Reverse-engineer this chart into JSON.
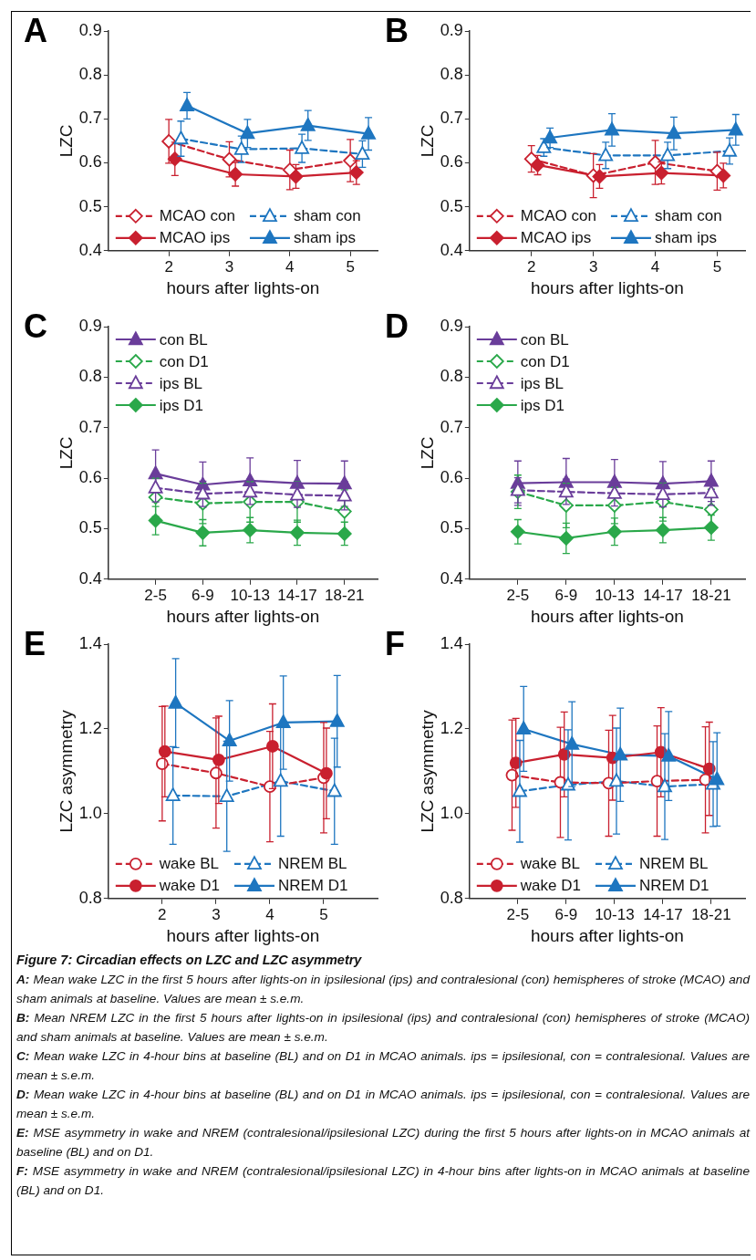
{
  "chart_data": [
    {
      "type": "line",
      "title": "A",
      "xlabel": "hours after lights-on",
      "ylabel": "LZC",
      "xlim": [
        1,
        5.45
      ],
      "xticks": [
        2,
        3,
        4,
        5
      ],
      "ylim": [
        0.4,
        0.9
      ],
      "yticks": [
        0.4,
        0.5,
        0.6,
        0.7,
        0.8,
        0.9
      ],
      "legend": "bottom left",
      "series": [
        {
          "name": "MCAO con",
          "color": "#c9202f",
          "line_style": "dashed",
          "marker": "diamond",
          "x": [
            2,
            3,
            4,
            5
          ],
          "values": [
            0.649,
            0.608,
            0.584,
            0.605
          ],
          "errors": [
            0.05,
            0.04,
            0.045,
            0.048
          ]
        },
        {
          "name": "MCAO ips",
          "color": "#c9202f",
          "line_style": "solid",
          "marker": "diamond",
          "x": [
            2.1,
            3.1,
            4.1,
            5.1
          ],
          "values": [
            0.609,
            0.574,
            0.569,
            0.578
          ],
          "errors": [
            0.038,
            0.027,
            0.027,
            0.027
          ]
        },
        {
          "name": "sham con",
          "color": "#1e76c0",
          "line_style": "dashed",
          "marker": "triangle",
          "x": [
            2.2,
            3.2,
            4.2,
            5.2
          ],
          "values": [
            0.655,
            0.631,
            0.633,
            0.62
          ],
          "errors": [
            0.04,
            0.03,
            0.032,
            0.03
          ]
        },
        {
          "name": "sham ips",
          "color": "#1e76c0",
          "line_style": "solid",
          "marker": "triangle",
          "x": [
            2.3,
            3.3,
            4.3,
            5.3
          ],
          "values": [
            0.73,
            0.667,
            0.685,
            0.666
          ],
          "errors": [
            0.03,
            0.032,
            0.034,
            0.037
          ]
        }
      ]
    },
    {
      "type": "line",
      "title": "B",
      "xlabel": "hours after lights-on",
      "ylabel": "LZC",
      "xlim": [
        1,
        5.45
      ],
      "xticks": [
        2,
        3,
        4,
        5
      ],
      "ylim": [
        0.4,
        0.9
      ],
      "yticks": [
        0.4,
        0.5,
        0.6,
        0.7,
        0.8,
        0.9
      ],
      "legend": "bottom left",
      "series": [
        {
          "name": "MCAO con",
          "color": "#c9202f",
          "line_style": "dashed",
          "marker": "diamond",
          "x": [
            2,
            3,
            4,
            5
          ],
          "values": [
            0.609,
            0.571,
            0.601,
            0.581
          ],
          "errors": [
            0.03,
            0.05,
            0.05,
            0.043
          ]
        },
        {
          "name": "MCAO ips",
          "color": "#c9202f",
          "line_style": "solid",
          "marker": "diamond",
          "x": [
            2.1,
            3.1,
            4.1,
            5.1
          ],
          "values": [
            0.595,
            0.569,
            0.577,
            0.571
          ],
          "errors": [
            0.022,
            0.027,
            0.025,
            0.028
          ]
        },
        {
          "name": "sham con",
          "color": "#1e76c0",
          "line_style": "dashed",
          "marker": "triangle",
          "x": [
            2.2,
            3.2,
            4.2,
            5.2
          ],
          "values": [
            0.635,
            0.617,
            0.617,
            0.627
          ],
          "errors": [
            0.02,
            0.03,
            0.03,
            0.03
          ]
        },
        {
          "name": "sham ips",
          "color": "#1e76c0",
          "line_style": "solid",
          "marker": "triangle",
          "x": [
            2.3,
            3.3,
            4.3,
            5.3
          ],
          "values": [
            0.657,
            0.675,
            0.667,
            0.675
          ],
          "errors": [
            0.022,
            0.037,
            0.037,
            0.035
          ]
        }
      ]
    },
    {
      "type": "line",
      "title": "C",
      "xlabel": "hours after lights-on",
      "ylabel": "LZC",
      "categories": [
        "2-5",
        "6-9",
        "10-13",
        "14-17",
        "18-21"
      ],
      "ylim": [
        0.4,
        0.9
      ],
      "yticks": [
        0.4,
        0.5,
        0.6,
        0.7,
        0.8,
        0.9
      ],
      "legend": "top left",
      "series": [
        {
          "name": "con BL",
          "color": "#6a3d9a",
          "line_style": "solid",
          "marker": "triangle",
          "values": [
            0.609,
            0.587,
            0.595,
            0.59,
            0.589
          ],
          "errors": [
            0.047,
            0.045,
            0.045,
            0.045,
            0.045
          ]
        },
        {
          "name": "con D1",
          "color": "#2aa84a",
          "line_style": "dashed",
          "marker": "diamond",
          "values": [
            0.562,
            0.55,
            0.553,
            0.553,
            0.534
          ],
          "errors": [
            0.038,
            0.04,
            0.04,
            0.04,
            0.043
          ]
        },
        {
          "name": "ips BL",
          "color": "#6a3d9a",
          "line_style": "dashed",
          "marker": "triangle",
          "values": [
            0.581,
            0.569,
            0.573,
            0.567,
            0.565
          ],
          "errors": [
            0.028,
            0.025,
            0.025,
            0.025,
            0.028
          ]
        },
        {
          "name": "ips D1",
          "color": "#2aa84a",
          "line_style": "solid",
          "marker": "diamond",
          "values": [
            0.516,
            0.492,
            0.497,
            0.492,
            0.49
          ],
          "errors": [
            0.028,
            0.026,
            0.025,
            0.025,
            0.023
          ]
        }
      ]
    },
    {
      "type": "line",
      "title": "D",
      "xlabel": "hours after lights-on",
      "ylabel": "LZC",
      "categories": [
        "2-5",
        "6-9",
        "10-13",
        "14-17",
        "18-21"
      ],
      "ylim": [
        0.4,
        0.9
      ],
      "yticks": [
        0.4,
        0.5,
        0.6,
        0.7,
        0.8,
        0.9
      ],
      "legend": "top left",
      "series": [
        {
          "name": "con BL",
          "color": "#6a3d9a",
          "line_style": "solid",
          "marker": "triangle",
          "values": [
            0.59,
            0.592,
            0.592,
            0.589,
            0.594
          ],
          "errors": [
            0.044,
            0.047,
            0.045,
            0.044,
            0.04
          ]
        },
        {
          "name": "con D1",
          "color": "#2aa84a",
          "line_style": "dashed",
          "marker": "diamond",
          "values": [
            0.573,
            0.546,
            0.546,
            0.553,
            0.538
          ],
          "errors": [
            0.033,
            0.044,
            0.036,
            0.038,
            0.04
          ]
        },
        {
          "name": "ips BL",
          "color": "#6a3d9a",
          "line_style": "dashed",
          "marker": "triangle",
          "values": [
            0.576,
            0.573,
            0.57,
            0.568,
            0.571
          ],
          "errors": [
            0.025,
            0.025,
            0.025,
            0.025,
            0.025
          ]
        },
        {
          "name": "ips D1",
          "color": "#2aa84a",
          "line_style": "solid",
          "marker": "diamond",
          "values": [
            0.494,
            0.481,
            0.494,
            0.497,
            0.502
          ],
          "errors": [
            0.024,
            0.03,
            0.027,
            0.025,
            0.025
          ]
        }
      ]
    },
    {
      "type": "line",
      "title": "E",
      "xlabel": "hours after lights-on",
      "ylabel": "LZC asymmetry",
      "xlim": [
        1,
        6
      ],
      "xticks": [
        2,
        3,
        4,
        5
      ],
      "ylim": [
        0.8,
        1.4
      ],
      "yticks": [
        0.8,
        {
          "value": 1,
          "label": "1.0"
        },
        1.2,
        1.4
      ],
      "legend": "bottom left",
      "series": [
        {
          "name": "wake BL",
          "color": "#c9202f",
          "line_style": "dashed",
          "marker": "circle",
          "x": [
            2,
            3,
            4,
            5
          ],
          "values": [
            1.118,
            1.096,
            1.064,
            1.085
          ],
          "errors": [
            0.135,
            0.13,
            0.13,
            0.13
          ]
        },
        {
          "name": "wake D1",
          "color": "#c9202f",
          "line_style": "solid",
          "marker": "circle",
          "x": [
            2.05,
            3.05,
            4.05,
            5.05
          ],
          "values": [
            1.147,
            1.127,
            1.159,
            1.095
          ],
          "errors": [
            0.107,
            0.103,
            0.1,
            0.107
          ]
        },
        {
          "name": "NREM BL",
          "color": "#1e76c0",
          "line_style": "dashed",
          "marker": "triangle",
          "x": [
            2.2,
            3.2,
            4.2,
            5.2
          ],
          "values": [
            1.043,
            1.041,
            1.077,
            1.053
          ],
          "errors": [
            0.115,
            0.13,
            0.13,
            0.125
          ]
        },
        {
          "name": "NREM D1",
          "color": "#1e76c0",
          "line_style": "solid",
          "marker": "triangle",
          "x": [
            2.25,
            3.25,
            4.25,
            5.25
          ],
          "values": [
            1.261,
            1.172,
            1.215,
            1.218
          ],
          "errors": [
            0.105,
            0.095,
            0.11,
            0.108
          ]
        }
      ]
    },
    {
      "type": "line",
      "title": "F",
      "xlabel": "hours after lights-on",
      "ylabel": "LZC asymmetry",
      "categories": [
        "2-5",
        "6-9",
        "10-13",
        "14-17",
        "18-21"
      ],
      "ylim": [
        0.8,
        1.4
      ],
      "yticks": [
        0.8,
        {
          "value": 1,
          "label": "1.0"
        },
        1.2,
        1.4
      ],
      "legend": "bottom left",
      "series": [
        {
          "name": "wake BL",
          "color": "#c9202f",
          "line_style": "dashed",
          "marker": "circle",
          "values": [
            1.091,
            1.074,
            1.072,
            1.077,
            1.08
          ],
          "errors": [
            0.13,
            0.13,
            0.125,
            0.13,
            0.125
          ]
        },
        {
          "name": "wake D1",
          "color": "#c9202f",
          "line_style": "solid",
          "marker": "circle",
          "values": [
            1.12,
            1.14,
            1.132,
            1.145,
            1.106
          ],
          "errors": [
            0.105,
            0.1,
            0.1,
            0.105,
            0.11
          ]
        },
        {
          "name": "NREM BL",
          "color": "#1e76c0",
          "line_style": "dashed",
          "marker": "triangle",
          "values": [
            1.053,
            1.068,
            1.077,
            1.064,
            1.07
          ],
          "errors": [
            0.12,
            0.13,
            0.125,
            0.125,
            0.1
          ]
        },
        {
          "name": "NREM D1",
          "color": "#1e76c0",
          "line_style": "solid",
          "marker": "triangle",
          "values": [
            1.2,
            1.164,
            1.139,
            1.136,
            1.081
          ],
          "errors": [
            0.1,
            0.1,
            0.11,
            0.105,
            0.11
          ]
        }
      ]
    },
    {
      "type": "other",
      "title": "Figure 7: Circadian effects on LZC and LZC asymmetry",
      "annotations": [
        "A: Mean wake LZC in the first 5 hours after lights-on in ipsilesional (ips) and contralesional (con) hemispheres of stroke (MCAO) and sham animals at baseline.  Values are mean ± s.e.m.",
        "B: Mean NREM LZC in the first 5 hours after lights-on in ipsilesional (ips) and contralesional (con) hemispheres of stroke (MCAO) and sham animals at baseline. Values are mean ± s.e.m.",
        "C: Mean wake LZC in 4-hour bins at baseline (BL) and on D1 in MCAO animals. ips = ipsilesional, con = contralesional. Values are mean ± s.e.m.",
        "D: Mean wake LZC in 4-hour bins at baseline (BL) and on D1 in MCAO animals. ips = ipsilesional, con = contralesional. Values are mean ± s.e.m.",
        "E: MSE asymmetry in wake and NREM (contralesional/ipsilesional LZC) during the first 5 hours after lights-on in MCAO animals at baseline (BL) and on D1.",
        "F: MSE asymmetry in wake and NREM (contralesional/ipsilesional LZC) in 4-hour bins after lights-on in MCAO animals at baseline (BL) and on D1."
      ]
    }
  ]
}
